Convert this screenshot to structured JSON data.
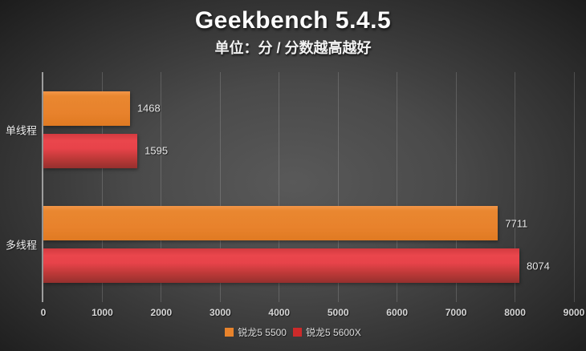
{
  "chart_data": {
    "type": "bar",
    "orientation": "horizontal",
    "title": "Geekbench 5.4.5",
    "subtitle": "单位：分 / 分数越高越好",
    "categories": [
      "单线程",
      "多线程"
    ],
    "series": [
      {
        "name": "锐龙5 5500",
        "color": "#e8832c",
        "gradient": [
          "#f39649 0%",
          "#e98730 14%",
          "#e8822c 62%",
          "#e07a22 100%"
        ],
        "values": [
          1468,
          7711
        ]
      },
      {
        "name": "锐龙5 5600X",
        "color": "#cc2a2a",
        "gradient": [
          "#d23a3f 0%",
          "#ea464c 20%",
          "#e8434a 42%",
          "#bd3938 72%",
          "#95302e 100%"
        ],
        "values": [
          1595,
          8074
        ]
      }
    ],
    "xlim": [
      0,
      9000
    ],
    "xticks": [
      0,
      1000,
      2000,
      3000,
      4000,
      5000,
      6000,
      7000,
      8000,
      9000
    ],
    "grid": "vertical",
    "legend_position": "bottom",
    "value_labels": true,
    "colors": {
      "background_center": "#595959",
      "background_edge": "#1c1c1c",
      "axis_line": "#9d9d9d",
      "text": "#e8e8e8"
    }
  }
}
